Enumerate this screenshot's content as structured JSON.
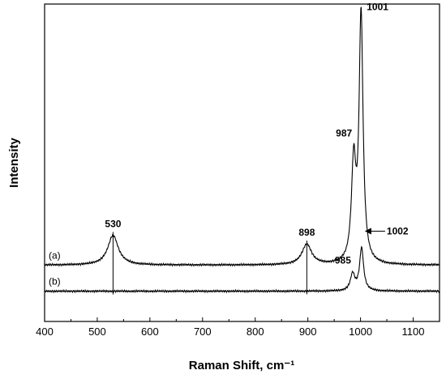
{
  "chart_data": {
    "type": "line",
    "xlabel": "Raman Shift, cm⁻¹",
    "ylabel": "Intensity",
    "xlim": [
      400,
      1150
    ],
    "x_ticks": [
      400,
      500,
      600,
      700,
      800,
      900,
      1000,
      1100
    ],
    "y_ticks_shown": false,
    "grid": false,
    "series": [
      {
        "name": "(a)",
        "color": "#000000",
        "baseline": 0.12,
        "peaks": [
          {
            "x": 530,
            "height": 0.16,
            "width": 12
          },
          {
            "x": 898,
            "height": 0.11,
            "width": 11
          },
          {
            "x": 987,
            "height": 0.52,
            "width": 5
          },
          {
            "x": 1001,
            "height": 1.33,
            "width": 4.5
          }
        ]
      },
      {
        "name": "(b)",
        "color": "#000000",
        "baseline": -0.02,
        "peaks": [
          {
            "x": 985,
            "height": 0.09,
            "width": 5
          },
          {
            "x": 1002,
            "height": 0.23,
            "width": 4.5
          }
        ]
      }
    ],
    "annotations": [
      {
        "text": "530",
        "x": 530,
        "series": "(a)",
        "marker": "vertical-line"
      },
      {
        "text": "898",
        "x": 898,
        "series": "(a)",
        "marker": "vertical-line"
      },
      {
        "text": "987",
        "x": 987,
        "series": "(a)"
      },
      {
        "text": "1001",
        "x": 1001,
        "series": "(a)"
      },
      {
        "text": "985",
        "x": 985,
        "series": "(b)"
      },
      {
        "text": "1002",
        "x": 1002,
        "series": "(b)",
        "marker": "arrow"
      }
    ]
  }
}
